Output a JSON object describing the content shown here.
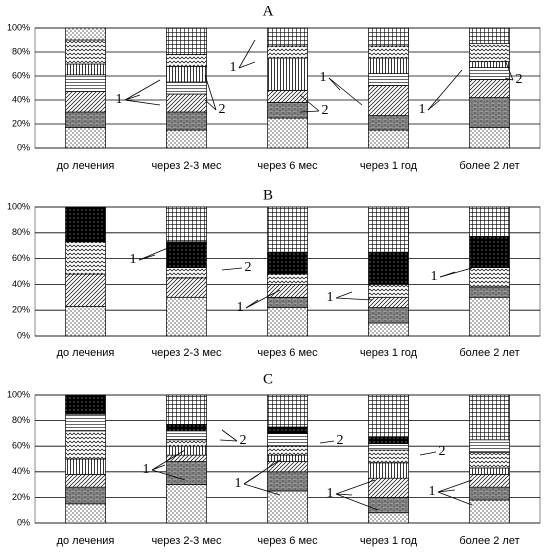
{
  "chart_data": [
    {
      "type": "stacked-bar",
      "title": "A",
      "categories": [
        "до лечения",
        "через 2-3 мес",
        "через 6 мес",
        "через 1 год",
        "более 2 лет"
      ],
      "ylim": [
        0,
        100
      ],
      "yticks": [
        {
          "value": 0,
          "label": "0%"
        },
        {
          "value": 20,
          "label": "20%"
        },
        {
          "value": 40,
          "label": "40%"
        },
        {
          "value": 60,
          "label": "60%"
        },
        {
          "value": 80,
          "label": "80%"
        },
        {
          "value": 100,
          "label": "100%"
        }
      ],
      "grid": true,
      "series": [
        {
          "pattern": "dots",
          "values": [
            17,
            15,
            25,
            15,
            17
          ]
        },
        {
          "pattern": "brick",
          "values": [
            13,
            15,
            13,
            12,
            25
          ]
        },
        {
          "pattern": "diag",
          "values": [
            17,
            15,
            10,
            25,
            15
          ]
        },
        {
          "pattern": "hlines",
          "values": [
            14,
            10,
            0,
            10,
            10
          ]
        },
        {
          "pattern": "vlines",
          "values": [
            9,
            13,
            27,
            13,
            5
          ]
        },
        {
          "pattern": "waves",
          "values": [
            20,
            10,
            10,
            10,
            15
          ]
        },
        {
          "pattern": "checker",
          "values": [
            0,
            22,
            15,
            15,
            13
          ]
        },
        {
          "pattern": "dots",
          "values": [
            10,
            0,
            0,
            0,
            0
          ]
        }
      ],
      "annotations": [
        "1",
        "2",
        "1",
        "2",
        "1",
        "1",
        "2"
      ]
    },
    {
      "type": "stacked-bar",
      "title": "B",
      "categories": [
        "до лечения",
        "через 2-3 мес",
        "через 6 мес",
        "через 1 год",
        "более 2 лет"
      ],
      "ylim": [
        0,
        100
      ],
      "yticks": [
        {
          "value": 0,
          "label": "0%"
        },
        {
          "value": 20,
          "label": "20%"
        },
        {
          "value": 40,
          "label": "40%"
        },
        {
          "value": 60,
          "label": "60%"
        },
        {
          "value": 80,
          "label": "80%"
        },
        {
          "value": 100,
          "label": "100%"
        }
      ],
      "grid": true,
      "series": [
        {
          "pattern": "dots",
          "values": [
            23,
            30,
            22,
            10,
            30
          ]
        },
        {
          "pattern": "brick",
          "values": [
            0,
            0,
            8,
            12,
            8
          ]
        },
        {
          "pattern": "diag",
          "values": [
            25,
            15,
            10,
            8,
            0
          ]
        },
        {
          "pattern": "waves",
          "values": [
            25,
            8,
            8,
            10,
            15
          ]
        },
        {
          "pattern": "black",
          "values": [
            27,
            20,
            17,
            25,
            24
          ]
        },
        {
          "pattern": "checker",
          "values": [
            0,
            27,
            35,
            35,
            23
          ]
        }
      ],
      "annotations": [
        "1",
        "2",
        "1",
        "1",
        "1"
      ]
    },
    {
      "type": "stacked-bar",
      "title": "C",
      "categories": [
        "до лечения",
        "через 2-3 мес",
        "через 6 мес",
        "через 1 год",
        "более 2 лет"
      ],
      "ylim": [
        0,
        100
      ],
      "yticks": [
        {
          "value": 0,
          "label": "0%"
        },
        {
          "value": 20,
          "label": "20%"
        },
        {
          "value": 40,
          "label": "40%"
        },
        {
          "value": 60,
          "label": "60%"
        },
        {
          "value": 80,
          "label": "80%"
        },
        {
          "value": 100,
          "label": "100%"
        }
      ],
      "grid": true,
      "series": [
        {
          "pattern": "dots",
          "values": [
            15,
            30,
            25,
            8,
            18
          ]
        },
        {
          "pattern": "brick",
          "values": [
            13,
            18,
            15,
            12,
            10
          ]
        },
        {
          "pattern": "diag",
          "values": [
            10,
            5,
            8,
            15,
            10
          ]
        },
        {
          "pattern": "vlines",
          "values": [
            12,
            7,
            5,
            12,
            5
          ]
        },
        {
          "pattern": "waves",
          "values": [
            22,
            5,
            7,
            10,
            12
          ]
        },
        {
          "pattern": "hlines",
          "values": [
            13,
            7,
            10,
            5,
            10
          ]
        },
        {
          "pattern": "black",
          "values": [
            15,
            5,
            5,
            5,
            0
          ]
        },
        {
          "pattern": "checker",
          "values": [
            0,
            23,
            25,
            33,
            35
          ]
        }
      ],
      "annotations": [
        "1",
        "2",
        "1",
        "2",
        "1",
        "2",
        "1"
      ]
    }
  ]
}
